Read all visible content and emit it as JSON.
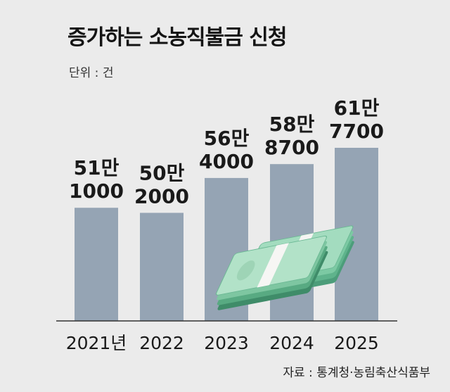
{
  "title": "증가하는 소농직불금 신청",
  "unit_label": "단위 : 건",
  "source": "자료 : 통계청·농림축산식품부",
  "colors": {
    "bar": "#95a4b4",
    "baseline": "#333333",
    "background": "#ebebeb"
  },
  "chart_data": {
    "type": "bar",
    "categories": [
      "2021년",
      "2022",
      "2023",
      "2024",
      "2025"
    ],
    "values": [
      511000,
      502000,
      564000,
      588700,
      617700
    ],
    "labels": [
      [
        "51만",
        "1000"
      ],
      [
        "50만",
        "2000"
      ],
      [
        "56만",
        "4000"
      ],
      [
        "58만",
        "8700"
      ],
      [
        "61만",
        "7700"
      ]
    ],
    "ylim": [
      0,
      617700
    ],
    "grid": false,
    "legend": "none"
  }
}
